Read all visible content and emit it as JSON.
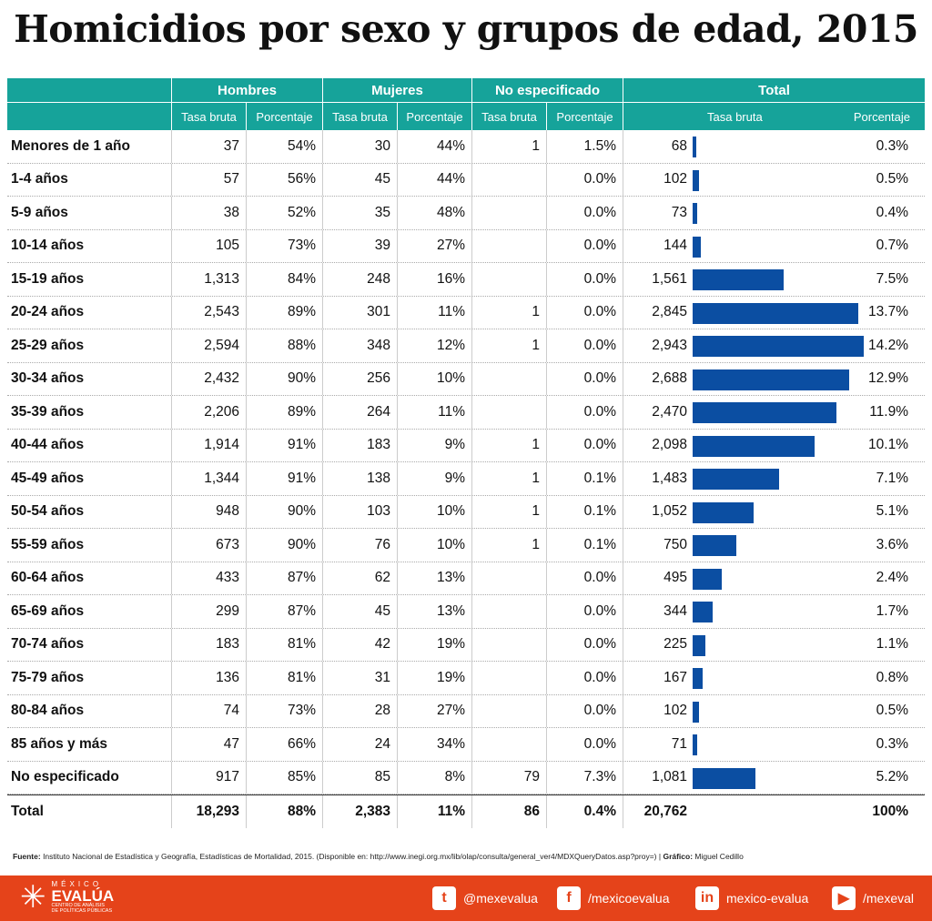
{
  "title": "Homicidios por sexo y grupos de edad, 2015",
  "chart_data": {
    "type": "table",
    "title": "Homicidios por sexo y grupos de edad, 2015",
    "groups": [
      "Hombres",
      "Mujeres",
      "No especificado",
      "Total"
    ],
    "subheaders": [
      "Tasa bruta",
      "Porcentaje",
      "Tasa bruta",
      "Porcentaje",
      "Tasa bruta",
      "Porcentaje",
      "Tasa bruta",
      "Porcentaje"
    ],
    "bar_color": "#0b4ea2",
    "header_color": "#16a39a",
    "rows": [
      {
        "label": "Menores de 1 año",
        "h": "37",
        "hp": "54%",
        "m": "30",
        "mp": "44%",
        "n": "1",
        "np": "1.5%",
        "t": "68",
        "tv": 68,
        "tp": "0.3%"
      },
      {
        "label": "1-4 años",
        "h": "57",
        "hp": "56%",
        "m": "45",
        "mp": "44%",
        "n": "",
        "np": "0.0%",
        "t": "102",
        "tv": 102,
        "tp": "0.5%"
      },
      {
        "label": "5-9 años",
        "h": "38",
        "hp": "52%",
        "m": "35",
        "mp": "48%",
        "n": "",
        "np": "0.0%",
        "t": "73",
        "tv": 73,
        "tp": "0.4%"
      },
      {
        "label": "10-14 años",
        "h": "105",
        "hp": "73%",
        "m": "39",
        "mp": "27%",
        "n": "",
        "np": "0.0%",
        "t": "144",
        "tv": 144,
        "tp": "0.7%"
      },
      {
        "label": "15-19 años",
        "h": "1,313",
        "hp": "84%",
        "m": "248",
        "mp": "16%",
        "n": "",
        "np": "0.0%",
        "t": "1,561",
        "tv": 1561,
        "tp": "7.5%"
      },
      {
        "label": "20-24 años",
        "h": "2,543",
        "hp": "89%",
        "m": "301",
        "mp": "11%",
        "n": "1",
        "np": "0.0%",
        "t": "2,845",
        "tv": 2845,
        "tp": "13.7%"
      },
      {
        "label": "25-29 años",
        "h": "2,594",
        "hp": "88%",
        "m": "348",
        "mp": "12%",
        "n": "1",
        "np": "0.0%",
        "t": "2,943",
        "tv": 2943,
        "tp": "14.2%"
      },
      {
        "label": "30-34 años",
        "h": "2,432",
        "hp": "90%",
        "m": "256",
        "mp": "10%",
        "n": "",
        "np": "0.0%",
        "t": "2,688",
        "tv": 2688,
        "tp": "12.9%"
      },
      {
        "label": "35-39 años",
        "h": "2,206",
        "hp": "89%",
        "m": "264",
        "mp": "11%",
        "n": "",
        "np": "0.0%",
        "t": "2,470",
        "tv": 2470,
        "tp": "11.9%"
      },
      {
        "label": "40-44 años",
        "h": "1,914",
        "hp": "91%",
        "m": "183",
        "mp": "9%",
        "n": "1",
        "np": "0.0%",
        "t": "2,098",
        "tv": 2098,
        "tp": "10.1%"
      },
      {
        "label": "45-49 años",
        "h": "1,344",
        "hp": "91%",
        "m": "138",
        "mp": "9%",
        "n": "1",
        "np": "0.1%",
        "t": "1,483",
        "tv": 1483,
        "tp": "7.1%"
      },
      {
        "label": "50-54 años",
        "h": "948",
        "hp": "90%",
        "m": "103",
        "mp": "10%",
        "n": "1",
        "np": "0.1%",
        "t": "1,052",
        "tv": 1052,
        "tp": "5.1%"
      },
      {
        "label": "55-59 años",
        "h": "673",
        "hp": "90%",
        "m": "76",
        "mp": "10%",
        "n": "1",
        "np": "0.1%",
        "t": "750",
        "tv": 750,
        "tp": "3.6%"
      },
      {
        "label": "60-64 años",
        "h": "433",
        "hp": "87%",
        "m": "62",
        "mp": "13%",
        "n": "",
        "np": "0.0%",
        "t": "495",
        "tv": 495,
        "tp": "2.4%"
      },
      {
        "label": "65-69 años",
        "h": "299",
        "hp": "87%",
        "m": "45",
        "mp": "13%",
        "n": "",
        "np": "0.0%",
        "t": "344",
        "tv": 344,
        "tp": "1.7%"
      },
      {
        "label": "70-74 años",
        "h": "183",
        "hp": "81%",
        "m": "42",
        "mp": "19%",
        "n": "",
        "np": "0.0%",
        "t": "225",
        "tv": 225,
        "tp": "1.1%"
      },
      {
        "label": "75-79 años",
        "h": "136",
        "hp": "81%",
        "m": "31",
        "mp": "19%",
        "n": "",
        "np": "0.0%",
        "t": "167",
        "tv": 167,
        "tp": "0.8%"
      },
      {
        "label": "80-84 años",
        "h": "74",
        "hp": "73%",
        "m": "28",
        "mp": "27%",
        "n": "",
        "np": "0.0%",
        "t": "102",
        "tv": 102,
        "tp": "0.5%"
      },
      {
        "label": "85 años y más",
        "h": "47",
        "hp": "66%",
        "m": "24",
        "mp": "34%",
        "n": "",
        "np": "0.0%",
        "t": "71",
        "tv": 71,
        "tp": "0.3%"
      },
      {
        "label": "No especificado",
        "h": "917",
        "hp": "85%",
        "m": "85",
        "mp": "8%",
        "n": "79",
        "np": "7.3%",
        "t": "1,081",
        "tv": 1081,
        "tp": "5.2%"
      }
    ],
    "total": {
      "label": "Total",
      "h": "18,293",
      "hp": "88%",
      "m": "2,383",
      "mp": "11%",
      "n": "86",
      "np": "0.4%",
      "t": "20,762",
      "tp": "100%"
    }
  },
  "source": {
    "label": "Fuente:",
    "text": " Instituto Nacional de Estadística y Geografía, Estadísticas de Mortalidad, 2015. (Disponible en: http://www.inegi.org.mx/lib/olap/consulta/general_ver4/MDXQueryDatos.asp?proy=) | ",
    "credit_label": "Gráfico:",
    "credit": " Miguel Cedillo"
  },
  "footer": {
    "logo": {
      "top": "MÉXICO",
      "name": "EVALÚA",
      "sub1": "CENTRO DE ANÁLISIS",
      "sub2": "DE POLÍTICAS PÚBLICAS"
    },
    "social": [
      {
        "icon": "twitter-icon",
        "glyph": "t",
        "handle": "@mexevalua"
      },
      {
        "icon": "facebook-icon",
        "glyph": "f",
        "handle": "/mexicoevalua"
      },
      {
        "icon": "linkedin-icon",
        "glyph": "in",
        "handle": "mexico-evalua"
      },
      {
        "icon": "youtube-icon",
        "glyph": "▶",
        "handle": "/mexeval"
      }
    ],
    "color": "#e5431a"
  }
}
